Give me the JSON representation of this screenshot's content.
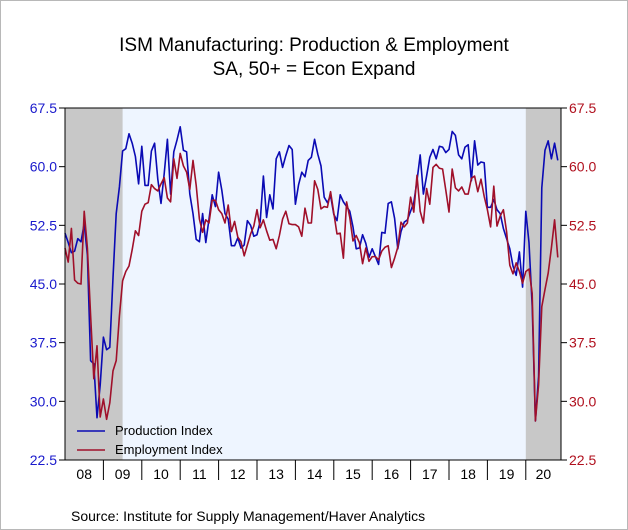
{
  "chart_data": {
    "type": "line",
    "title": "ISM Manufacturing: Production & Employment",
    "subtitle": "SA, 50+ = Econ Expand",
    "source": "Source:   Institute for Supply Management/Haver Analytics",
    "ylim": [
      22.5,
      67.5
    ],
    "yticks": [
      "67.5",
      "60.0",
      "52.5",
      "45.0",
      "37.5",
      "30.0",
      "22.5"
    ],
    "x_range": [
      2008.0,
      2020.917
    ],
    "x_labels": [
      "08",
      "09",
      "10",
      "11",
      "12",
      "13",
      "14",
      "15",
      "16",
      "17",
      "18",
      "19",
      "20"
    ],
    "recessions": [
      [
        2008.0,
        2009.5
      ],
      [
        2020.0,
        2020.917
      ]
    ],
    "grid": false,
    "legend": "bottom-left",
    "colors": {
      "plot_background": "#eef5ff",
      "recession": "#c8c8c8",
      "left_axis": "#1a1acc",
      "right_axis": "#b0101e"
    },
    "series": [
      {
        "name": "Production Index",
        "color": "#0a0ab4",
        "start": 2008.0,
        "values": [
          51.5,
          50.3,
          49.0,
          49.2,
          50.8,
          50.4,
          52.7,
          48.7,
          35.2,
          34.8,
          27.9,
          32.1,
          38.2,
          36.6,
          36.9,
          45.8,
          54.0,
          57.4,
          62.0,
          62.3,
          64.2,
          63.0,
          61.3,
          57.8,
          62.6,
          57.6,
          57.6,
          62.0,
          63.0,
          58.4,
          55.3,
          59.1,
          63.5,
          56.5,
          61.9,
          63.4,
          65.1,
          62.1,
          61.9,
          56.5,
          54.0,
          50.7,
          50.4,
          54.0,
          50.3,
          53.3,
          56.4,
          54.9,
          59.3,
          57.0,
          54.0,
          53.3,
          49.9,
          49.9,
          50.9,
          49.6,
          50.0,
          53.1,
          52.5,
          51.1,
          51.3,
          53.0,
          58.8,
          53.5,
          56.4,
          54.6,
          61.0,
          61.9,
          59.9,
          61.4,
          62.7,
          62.2,
          55.2,
          57.7,
          59.3,
          58.7,
          60.8,
          61.2,
          63.5,
          61.6,
          60.1,
          56.1,
          55.4,
          56.3,
          53.9,
          53.1,
          56.4,
          55.5,
          54.9,
          54.3,
          52.3,
          49.5,
          49.6,
          51.3,
          50.2,
          48.4,
          49.5,
          48.5,
          47.5,
          51.6,
          51.5,
          55.3,
          55.5,
          53.4,
          49.5,
          51.7,
          52.9,
          53.2,
          54.3,
          55.4,
          58.2,
          61.5,
          56.5,
          58.8,
          61.2,
          62.2,
          61.0,
          62.6,
          62.5,
          61.8,
          62.2,
          64.5,
          64.0,
          61.5,
          61.0,
          62.5,
          62.8,
          58.2,
          63.3,
          60.2,
          60.6,
          60.5,
          54.8,
          54.8,
          55.8,
          54.5,
          54.0,
          52.1,
          50.8,
          49.5,
          47.3,
          46.1,
          49.1,
          44.6,
          54.3,
          50.3,
          42.2,
          27.5,
          33.2,
          57.3,
          62.1,
          63.3,
          61.0,
          63.0,
          60.8,
          null
        ]
      },
      {
        "name": "Employment Index",
        "color": "#a0102a",
        "start": 2008.0,
        "values": [
          49.6,
          47.8,
          52.1,
          45.5,
          45.1,
          45.0,
          54.3,
          49.6,
          41.0,
          32.9,
          37.1,
          28.0,
          30.3,
          27.7,
          29.8,
          33.9,
          35.2,
          40.9,
          45.4,
          46.6,
          47.3,
          49.4,
          51.8,
          51.2,
          54.3,
          55.2,
          55.4,
          57.7,
          57.2,
          56.9,
          57.8,
          58.6,
          56.0,
          55.5,
          61.0,
          58.5,
          61.7,
          60.1,
          59.3,
          57.1,
          60.8,
          57.6,
          53.3,
          51.6,
          53.2,
          52.8,
          55.7,
          55.7,
          54.5,
          54.0,
          52.8,
          55.1,
          51.7,
          53.0,
          51.0,
          50.4,
          48.6,
          50.0,
          51.4,
          52.4,
          54.5,
          52.2,
          53.2,
          51.8,
          50.6,
          50.7,
          49.5,
          51.2,
          53.3,
          54.3,
          52.7,
          52.6,
          52.6,
          52.3,
          51.1,
          54.7,
          52.8,
          52.8,
          58.2,
          57.1,
          54.6,
          54.9,
          54.8,
          56.8,
          54.1,
          51.4,
          51.5,
          48.3,
          55.5,
          53.5,
          50.5,
          51.2,
          50.3,
          47.6,
          49.6,
          47.9,
          48.5,
          48.5,
          48.1,
          49.2,
          49.7,
          49.9,
          47.1,
          48.3,
          49.7,
          52.9,
          52.3,
          52.8,
          56.1,
          54.2,
          58.9,
          54.3,
          52.8,
          57.2,
          55.2,
          59.9,
          60.3,
          59.8,
          59.7,
          57.0,
          54.2,
          59.7,
          57.3,
          56.9,
          57.4,
          56.5,
          56.5,
          58.5,
          58.8,
          56.8,
          58.4,
          56.2,
          54.5,
          52.3,
          57.5,
          52.4,
          53.7,
          54.5,
          51.7,
          47.4,
          46.3,
          47.7,
          46.6,
          45.1,
          46.6,
          46.9,
          43.8,
          27.5,
          32.1,
          42.1,
          44.3,
          46.4,
          49.6,
          53.2,
          48.4,
          null
        ]
      }
    ]
  }
}
